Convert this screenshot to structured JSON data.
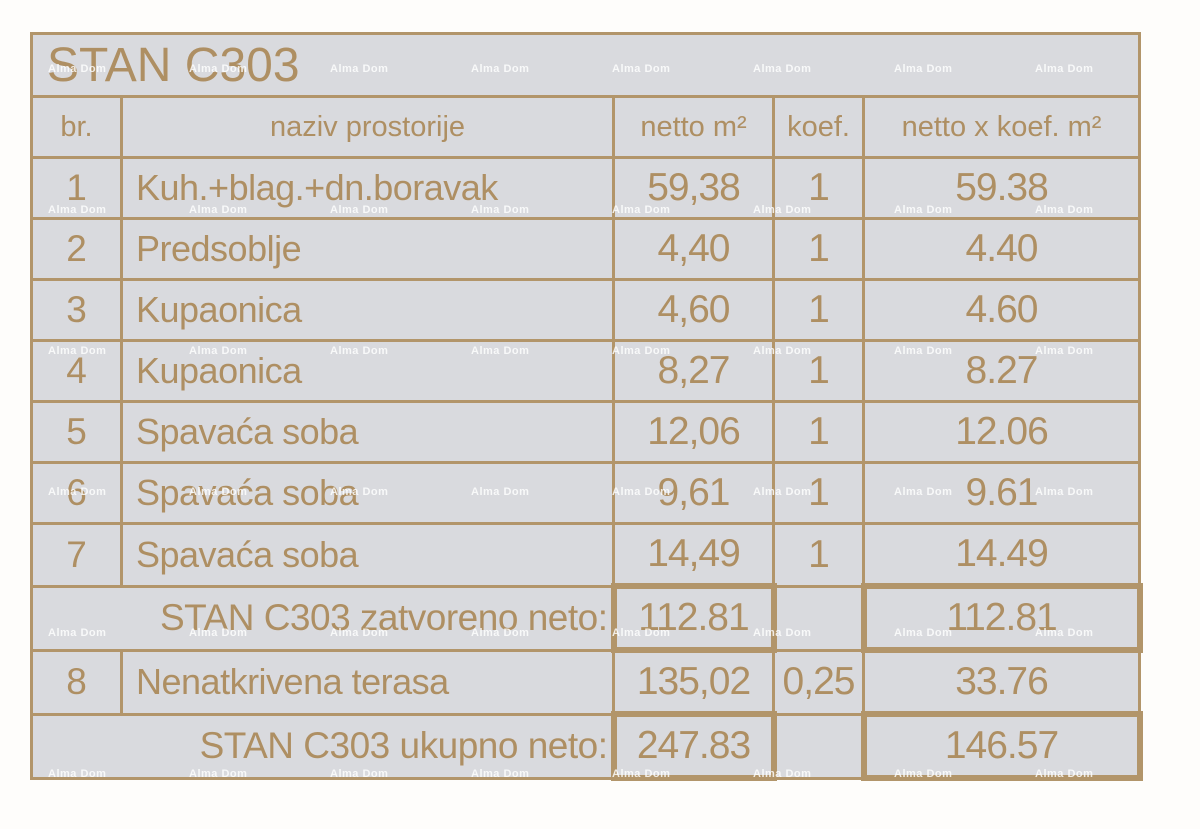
{
  "watermark": {
    "text": "Alma Dom"
  },
  "title": "STAN C303",
  "colors": {
    "line": "#b2956a",
    "text": "#ae8f63",
    "cell_bg": "#d9dade"
  },
  "table": {
    "headers": {
      "br": "br.",
      "naziv": "naziv prostorije",
      "netto": "netto m²",
      "koef": "koef.",
      "netto_koef": "netto x koef. m²"
    },
    "rows": [
      {
        "br": "1",
        "naziv": "Kuh.+blag.+dn.boravak",
        "netto": "59,38",
        "koef": "1",
        "netto_koef": "59.38"
      },
      {
        "br": "2",
        "naziv": "Predsoblje",
        "netto": "4,40",
        "koef": "1",
        "netto_koef": "4.40"
      },
      {
        "br": "3",
        "naziv": "Kupaonica",
        "netto": "4,60",
        "koef": "1",
        "netto_koef": "4.60"
      },
      {
        "br": "4",
        "naziv": "Kupaonica",
        "netto": "8,27",
        "koef": "1",
        "netto_koef": "8.27"
      },
      {
        "br": "5",
        "naziv": "Spavaća soba",
        "netto": "12,06",
        "koef": "1",
        "netto_koef": "12.06"
      },
      {
        "br": "6",
        "naziv": "Spavaća soba",
        "netto": "9,61",
        "koef": "1",
        "netto_koef": "9.61"
      },
      {
        "br": "7",
        "naziv": "Spavaća soba",
        "netto": "14,49",
        "koef": "1",
        "netto_koef": "14.49"
      }
    ],
    "closed_subtotal": {
      "label": "STAN C303 zatvoreno neto:",
      "netto": "112.81",
      "koef": "",
      "netto_koef": "112.81"
    },
    "terrace_row": {
      "br": "8",
      "naziv": "Nenatkrivena terasa",
      "netto": "135,02",
      "koef": "0,25",
      "netto_koef": "33.76"
    },
    "total": {
      "label": "STAN C303 ukupno neto:",
      "netto": "247.83",
      "koef": "",
      "netto_koef": "146.57"
    }
  }
}
